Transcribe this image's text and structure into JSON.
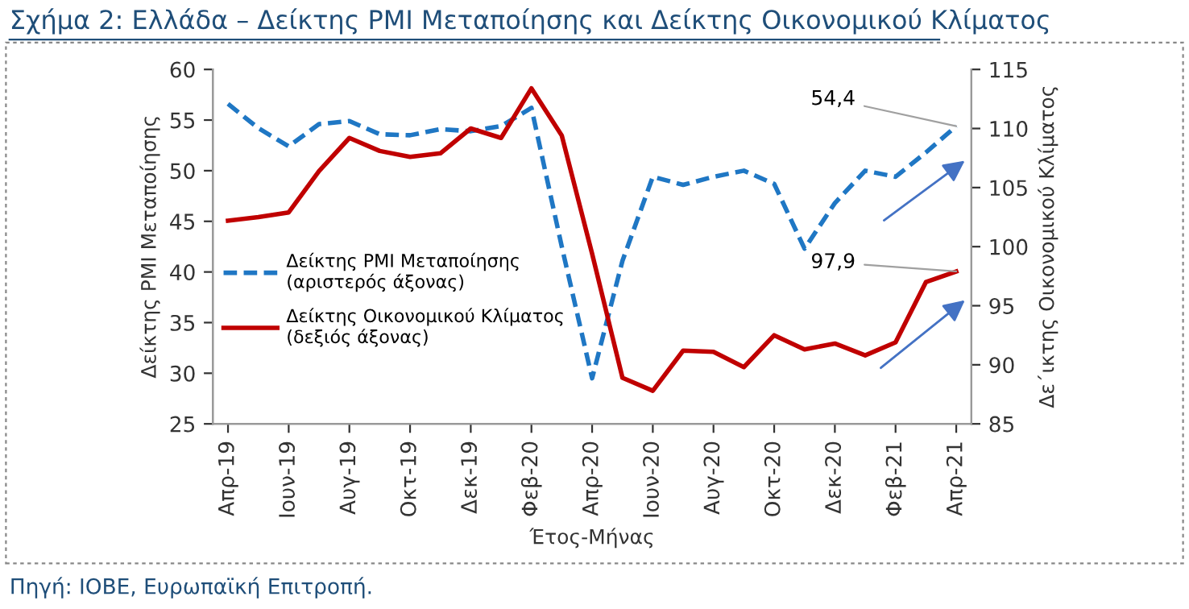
{
  "chart_data": {
    "type": "line",
    "title": "Σχήμα 2: Ελλάδα – Δείκτης PMI Μεταποίησης και Δείκτης Οικονομικού Κλίματος",
    "xlabel": "Έτος-Μήνας",
    "ylabel": "Δείκτης PMI Μεταποίησης",
    "y2label": "Δε΄ικτης Οικονομικού Κλίματος",
    "categories": [
      "Απρ-19",
      null,
      "Ιουν-19",
      null,
      "Αυγ-19",
      null,
      "Οκτ-19",
      null,
      "Δεκ-19",
      null,
      "Φεβ-20",
      null,
      "Απρ-20",
      null,
      "Ιουν-20",
      null,
      "Αυγ-20",
      null,
      "Οκτ-20",
      null,
      "Δεκ-20",
      null,
      "Φεβ-21",
      null,
      "Απρ-21"
    ],
    "series": [
      {
        "name": "Δείκτης PMI Μεταποίησης (αριστερός άξονας)",
        "color": "#1f77c4",
        "line_style": "dashed",
        "values": [
          56.6,
          54.2,
          52.4,
          54.6,
          54.9,
          53.6,
          53.5,
          54.1,
          53.9,
          54.4,
          56.2,
          42.5,
          29.5,
          41.1,
          49.4,
          48.6,
          49.4,
          50.0,
          48.7,
          42.3,
          46.8,
          50.0,
          49.4,
          51.8,
          54.4
        ],
        "value_labels": [
          null,
          null,
          null,
          null,
          null,
          null,
          null,
          null,
          null,
          null,
          null,
          null,
          null,
          null,
          null,
          null,
          null,
          null,
          null,
          null,
          null,
          null,
          null,
          null,
          "54,4"
        ]
      },
      {
        "name": "Δείκτης Οικονομικού Κλίματος (δεξιός άξονας)",
        "color": "#c00000",
        "line_style": "solid",
        "axis": "y2",
        "values": [
          102.2,
          102.5,
          102.9,
          106.4,
          109.2,
          108.1,
          107.6,
          107.9,
          110.0,
          109.2,
          113.4,
          109.4,
          99.4,
          88.9,
          87.8,
          91.2,
          91.1,
          89.8,
          92.5,
          91.3,
          91.8,
          90.8,
          91.9,
          97.0,
          97.9
        ],
        "value_labels": [
          null,
          null,
          null,
          null,
          null,
          null,
          null,
          null,
          null,
          null,
          null,
          null,
          null,
          null,
          null,
          null,
          null,
          null,
          null,
          null,
          null,
          null,
          null,
          null,
          "97,9"
        ]
      }
    ],
    "ylim": [
      25,
      60
    ],
    "yticks": [
      25,
      30,
      35,
      40,
      45,
      50,
      55,
      60
    ],
    "y2lim": [
      85,
      115
    ],
    "y2ticks": [
      85,
      90,
      95,
      100,
      105,
      110,
      115
    ],
    "legend": "left",
    "grid": false,
    "marker": "none",
    "annotations": [
      "Πηγή: ΙΟΒΕ, Ευρωπαϊκή Επιτροπή."
    ]
  }
}
